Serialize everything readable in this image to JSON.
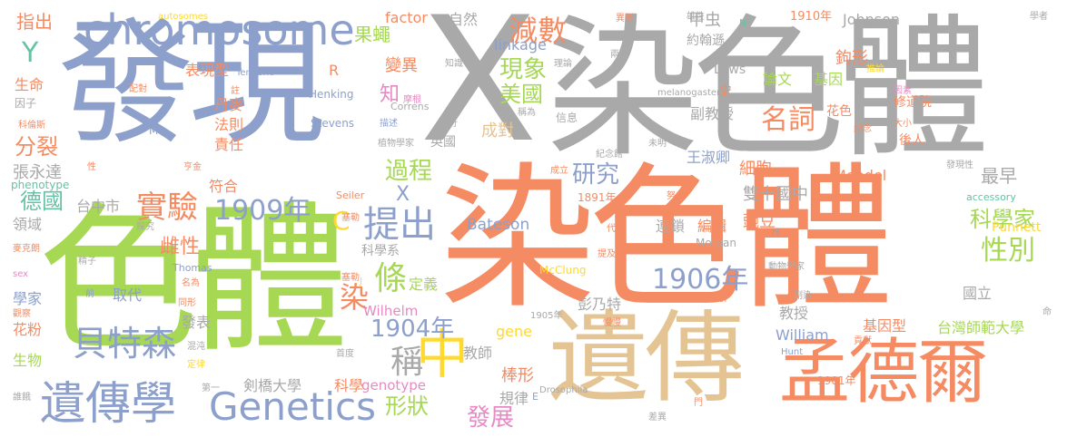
{
  "palette": {
    "orange": "#f58b62",
    "gray": "#a9a9a9",
    "blue": "#8da0cb",
    "green": "#a6d854",
    "tan": "#e5c494",
    "yellow": "#ffd92f",
    "pink": "#e78ac3",
    "teal": "#66c2a5"
  },
  "words": [
    {
      "text": "發現",
      "color": "blue"
    },
    {
      "text": "X",
      "color": "gray"
    },
    {
      "text": "染色體",
      "color": "gray"
    },
    {
      "text": "染色體",
      "color": "orange"
    },
    {
      "text": "色體",
      "color": "green"
    },
    {
      "text": "遺傳",
      "color": "tan"
    },
    {
      "text": "孟德爾",
      "color": "orange"
    },
    {
      "text": "chromosome",
      "color": "blue"
    },
    {
      "text": "Genetics",
      "color": "blue"
    },
    {
      "text": "遺傳學",
      "color": "blue"
    },
    {
      "text": "中",
      "color": "yellow"
    },
    {
      "text": "提出",
      "color": "blue"
    },
    {
      "text": "實驗",
      "color": "orange"
    },
    {
      "text": "貝特森",
      "color": "blue"
    },
    {
      "text": "1906年",
      "color": "blue"
    },
    {
      "text": "1909年",
      "color": "blue"
    },
    {
      "text": "1904年",
      "color": "blue"
    },
    {
      "text": "減數",
      "color": "orange"
    },
    {
      "text": "現象",
      "color": "green"
    },
    {
      "text": "美國",
      "color": "green"
    },
    {
      "text": "名詞",
      "color": "orange"
    },
    {
      "text": "研究",
      "color": "blue"
    },
    {
      "text": "過程",
      "color": "green"
    },
    {
      "text": "性別",
      "color": "green"
    },
    {
      "text": "科學家",
      "color": "green"
    },
    {
      "text": "染",
      "color": "orange"
    },
    {
      "text": "條",
      "color": "green"
    },
    {
      "text": "稱",
      "color": "gray"
    },
    {
      "text": "發展",
      "color": "pink"
    },
    {
      "text": "形狀",
      "color": "green"
    },
    {
      "text": "德國",
      "color": "teal"
    },
    {
      "text": "分裂",
      "color": "orange"
    },
    {
      "text": "果蠅",
      "color": "green"
    },
    {
      "text": "變異",
      "color": "orange"
    },
    {
      "text": "知",
      "color": "pink"
    },
    {
      "text": "Y",
      "color": "teal"
    },
    {
      "text": "C",
      "color": "yellow"
    },
    {
      "text": "X",
      "color": "blue"
    },
    {
      "text": "甲虫",
      "color": "gray"
    },
    {
      "text": "約翰遜",
      "color": "gray"
    },
    {
      "text": "鉤形",
      "color": "orange"
    },
    {
      "text": "Johnson",
      "color": "gray"
    },
    {
      "text": "Bateson",
      "color": "blue"
    },
    {
      "text": "Punnett",
      "color": "yellow"
    },
    {
      "text": "雙十國中",
      "color": "gray"
    },
    {
      "text": "最早",
      "color": "gray"
    },
    {
      "text": "細胞",
      "color": "orange"
    },
    {
      "text": "王淑卿",
      "color": "blue"
    },
    {
      "text": "彭乃特",
      "color": "gray"
    },
    {
      "text": "棒形",
      "color": "orange"
    },
    {
      "text": "規律",
      "color": "gray"
    },
    {
      "text": "教師",
      "color": "gray"
    },
    {
      "text": "定義",
      "color": "green"
    },
    {
      "text": "成對",
      "color": "tan"
    },
    {
      "text": "英國",
      "color": "gray"
    },
    {
      "text": "雌性",
      "color": "orange"
    },
    {
      "text": "符合",
      "color": "orange"
    },
    {
      "text": "責任",
      "color": "orange"
    },
    {
      "text": "法則",
      "color": "orange"
    },
    {
      "text": "丹麥",
      "color": "orange"
    },
    {
      "text": "表現型",
      "color": "orange"
    },
    {
      "text": "生命",
      "color": "orange"
    },
    {
      "text": "指出",
      "color": "orange"
    },
    {
      "text": "張永達",
      "color": "gray"
    },
    {
      "text": "領域",
      "color": "gray"
    },
    {
      "text": "台中市",
      "color": "gray"
    },
    {
      "text": "學家",
      "color": "blue"
    },
    {
      "text": "花粉",
      "color": "orange"
    },
    {
      "text": "生物",
      "color": "green"
    },
    {
      "text": "發表",
      "color": "gray"
    },
    {
      "text": "取代",
      "color": "blue"
    },
    {
      "text": "剣橋大學",
      "color": "gray"
    },
    {
      "text": "科學",
      "color": "orange"
    },
    {
      "text": "genotype",
      "color": "pink"
    },
    {
      "text": "Wilhelm",
      "color": "pink"
    },
    {
      "text": "gene",
      "color": "yellow"
    },
    {
      "text": "linkage",
      "color": "blue"
    },
    {
      "text": "factor",
      "color": "orange"
    },
    {
      "text": "自然",
      "color": "gray"
    },
    {
      "text": "論文",
      "color": "green"
    },
    {
      "text": "基因",
      "color": "green"
    },
    {
      "text": "副教授",
      "color": "gray"
    },
    {
      "text": "連鎖",
      "color": "gray"
    },
    {
      "text": "編輯",
      "color": "orange"
    },
    {
      "text": "豌豆",
      "color": "orange"
    },
    {
      "text": "教授",
      "color": "gray"
    },
    {
      "text": "William",
      "color": "blue"
    },
    {
      "text": "基因型",
      "color": "orange"
    },
    {
      "text": "國立",
      "color": "gray"
    },
    {
      "text": "台灣師範大學",
      "color": "green"
    },
    {
      "text": "Mendel",
      "color": "orange"
    },
    {
      "text": "Laws",
      "color": "gray"
    },
    {
      "text": "1910年",
      "color": "orange"
    },
    {
      "text": "花色",
      "color": "orange"
    },
    {
      "text": "修道院",
      "color": "orange"
    },
    {
      "text": "後人",
      "color": "orange"
    },
    {
      "text": "科學系",
      "color": "gray"
    },
    {
      "text": "Henking",
      "color": "blue"
    },
    {
      "text": "Stevens",
      "color": "blue"
    },
    {
      "text": "Morgan",
      "color": "gray"
    },
    {
      "text": "McClung",
      "color": "yellow"
    },
    {
      "text": "1891年",
      "color": "orange"
    },
    {
      "text": "1901年",
      "color": "orange"
    },
    {
      "text": "1905年",
      "color": "gray"
    },
    {
      "text": "phenotype",
      "color": "teal"
    },
    {
      "text": "accessory",
      "color": "teal"
    },
    {
      "text": "autosomes",
      "color": "yellow"
    },
    {
      "text": "Tenebrio",
      "color": "blue"
    },
    {
      "text": "Correns",
      "color": "gray"
    },
    {
      "text": "Thomas",
      "color": "blue"
    },
    {
      "text": "Seiler",
      "color": "orange"
    },
    {
      "text": "melanogaster",
      "color": "gray"
    },
    {
      "text": "Drosophila",
      "color": "gray"
    },
    {
      "text": "molitor",
      "color": "orange"
    },
    {
      "text": "Hunt",
      "color": "blue"
    },
    {
      "text": "R",
      "color": "orange"
    },
    {
      "text": "M",
      "color": "blue"
    },
    {
      "text": "N",
      "color": "teal"
    },
    {
      "text": "E",
      "color": "blue"
    },
    {
      "text": "J",
      "color": "yellow"
    },
    {
      "text": "H",
      "color": "blue"
    },
    {
      "text": "sex",
      "color": "pink"
    },
    {
      "text": "因子",
      "color": "gray"
    },
    {
      "text": "科倫斯",
      "color": "orange"
    },
    {
      "text": "麥克朗",
      "color": "orange"
    },
    {
      "text": "摩根",
      "color": "pink"
    },
    {
      "text": "探究",
      "color": "gray"
    },
    {
      "text": "精子",
      "color": "gray"
    },
    {
      "text": "混沌",
      "color": "gray"
    },
    {
      "text": "定律",
      "color": "yellow"
    },
    {
      "text": "名為",
      "color": "orange"
    },
    {
      "text": "亨金",
      "color": "orange"
    },
    {
      "text": "塞勒",
      "color": "orange"
    },
    {
      "text": "雄性",
      "color": "gray"
    },
    {
      "text": "異形",
      "color": "orange"
    },
    {
      "text": "推論",
      "color": "yellow"
    },
    {
      "text": "大小",
      "color": "orange"
    },
    {
      "text": "因素",
      "color": "pink"
    },
    {
      "text": "紀念",
      "color": "orange"
    },
    {
      "text": "史",
      "color": "orange"
    },
    {
      "text": "註",
      "color": "orange"
    },
    {
      "text": "配對",
      "color": "orange"
    },
    {
      "text": "理論",
      "color": "gray"
    },
    {
      "text": "知識",
      "color": "gray"
    },
    {
      "text": "兩",
      "color": "gray"
    },
    {
      "text": "稱為",
      "color": "gray"
    },
    {
      "text": "信息",
      "color": "gray"
    },
    {
      "text": "描述",
      "color": "blue"
    },
    {
      "text": "步行",
      "color": "gray"
    },
    {
      "text": "植物學家",
      "color": "gray"
    },
    {
      "text": "未明",
      "color": "gray"
    },
    {
      "text": "紀念館",
      "color": "gray"
    },
    {
      "text": "成立",
      "color": "orange"
    },
    {
      "text": "努力",
      "color": "orange"
    },
    {
      "text": "代表",
      "color": "orange"
    },
    {
      "text": "提及",
      "color": "orange"
    },
    {
      "text": "慢慢",
      "color": "orange"
    },
    {
      "text": "動物學家",
      "color": "gray"
    },
    {
      "text": "副染",
      "color": "gray"
    },
    {
      "text": "首度",
      "color": "gray"
    },
    {
      "text": "差異",
      "color": "gray"
    },
    {
      "text": "門",
      "color": "orange"
    },
    {
      "text": "貢獻",
      "color": "orange"
    },
    {
      "text": "發現性",
      "color": "gray"
    },
    {
      "text": "學者",
      "color": "gray"
    },
    {
      "text": "性",
      "color": "orange"
    },
    {
      "text": "前",
      "color": "blue"
    },
    {
      "text": "第一",
      "color": "gray"
    },
    {
      "text": "塞勒",
      "color": "orange"
    },
    {
      "text": "誰餓",
      "color": "gray"
    },
    {
      "text": "命",
      "color": "gray"
    },
    {
      "text": "同形",
      "color": "orange"
    },
    {
      "text": "觀察",
      "color": "orange"
    }
  ]
}
